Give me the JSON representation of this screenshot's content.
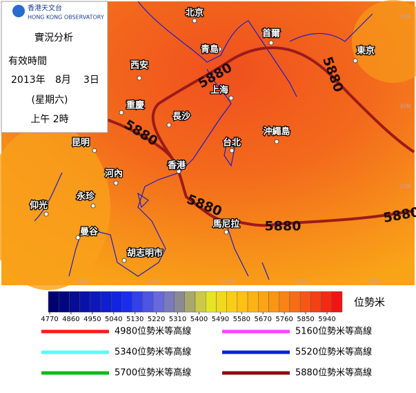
{
  "header": {
    "org_cn": "香港天文台",
    "org_en": "HONG KONG OBSERVATORY",
    "title": "實況分析",
    "valid_label": "有效時間",
    "year": "2013年",
    "month": "8月",
    "day": "3日",
    "weekday": "(星期六)",
    "time": "上午 2時"
  },
  "map": {
    "cities": [
      "北京",
      "首爾",
      "青島",
      "東京",
      "西安",
      "上海",
      "重慶",
      "長沙",
      "沖繩島",
      "昆明",
      "台北",
      "河內",
      "香港",
      "永珍",
      "仰光",
      "曼谷",
      "馬尼拉",
      "胡志明市"
    ],
    "contour_labels": [
      "5880",
      "5880",
      "5880",
      "5880",
      "5880",
      "5880"
    ],
    "lat_labels": [
      "40N",
      "30N",
      "20N"
    ],
    "lon_labels": [
      "100E",
      "110E",
      "120E",
      "130E",
      "140E"
    ]
  },
  "colorbar": {
    "ticks": [
      4770,
      4860,
      4950,
      5040,
      5130,
      5220,
      5310,
      5400,
      5490,
      5580,
      5670,
      5760,
      5850,
      5940
    ],
    "unit": "位勢米"
  },
  "legend": [
    {
      "label": "4980位勢米等高線",
      "color": "#ff1a1a"
    },
    {
      "label": "5160位勢米等高線",
      "color": "#ff44ff"
    },
    {
      "label": "5340位勢米等高線",
      "color": "#55ffff"
    },
    {
      "label": "5520位勢米等高線",
      "color": "#0a1fe0"
    },
    {
      "label": "5700位勢米等高線",
      "color": "#11b81b"
    },
    {
      "label": "5880位勢米等高線",
      "color": "#8b0d0d"
    }
  ]
}
